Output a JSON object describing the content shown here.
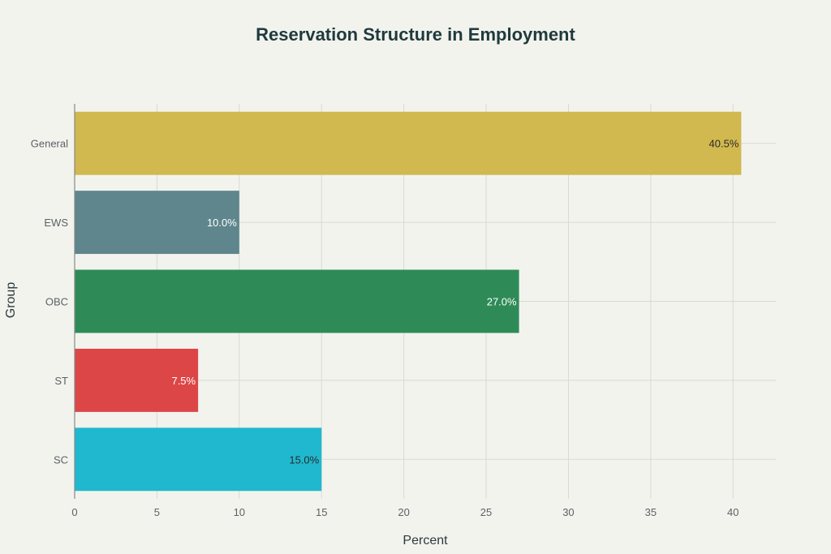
{
  "chart_data": {
    "type": "bar",
    "orientation": "horizontal",
    "title": "Reservation Structure in Employment",
    "xlabel": "Percent",
    "ylabel": "Group",
    "xlim": [
      0,
      42.6
    ],
    "xticks": [
      0,
      5,
      10,
      15,
      20,
      25,
      30,
      35,
      40
    ],
    "categories": [
      "General",
      "EWS",
      "OBC",
      "ST",
      "SC"
    ],
    "values": [
      40.5,
      10.0,
      27.0,
      7.5,
      15.0
    ],
    "data_labels": [
      "40.5%",
      "10.0%",
      "27.0%",
      "7.5%",
      "15.0%"
    ],
    "colors": [
      "#d1b84f",
      "#5e868c",
      "#2e8b57",
      "#dc4647",
      "#20b8cf"
    ],
    "label_colors": [
      "#2b2b2b",
      "#ffffff",
      "#ffffff",
      "#ffffff",
      "#2b2b2b"
    ],
    "grid": true,
    "legend": "none"
  }
}
